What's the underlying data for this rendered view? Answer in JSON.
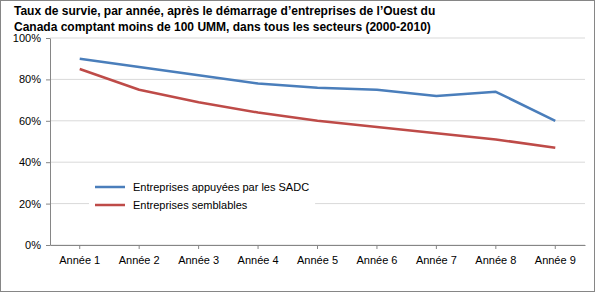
{
  "chart_data": {
    "type": "line",
    "title": [
      "Taux de survie, par année, après le démarrage d’entreprises de l’Ouest du",
      "Canada comptant moins de 100 UMM, dans tous les secteurs (2000-2010)"
    ],
    "categories": [
      "Année 1",
      "Année 2",
      "Année 3",
      "Année 4",
      "Année 5",
      "Année 6",
      "Année 7",
      "Année 8",
      "Année 9"
    ],
    "series": [
      {
        "name": "Entreprises appuyées par les SADC",
        "color": "#4a7ebb",
        "values": [
          90,
          86,
          82,
          78,
          76,
          75,
          72,
          74,
          60
        ]
      },
      {
        "name": "Entreprises semblables",
        "color": "#be4b48",
        "values": [
          85,
          75,
          69,
          64,
          60,
          57,
          54,
          51,
          47
        ]
      }
    ],
    "ylim": [
      0,
      100
    ],
    "yticks": [
      {
        "value": 0,
        "label": "0%"
      },
      {
        "value": 20,
        "label": "20%"
      },
      {
        "value": 40,
        "label": "40%"
      },
      {
        "value": 60,
        "label": "60%"
      },
      {
        "value": 80,
        "label": "80%"
      },
      {
        "value": 100,
        "label": "100%"
      }
    ],
    "grid": true,
    "legend": "bottom-left"
  }
}
